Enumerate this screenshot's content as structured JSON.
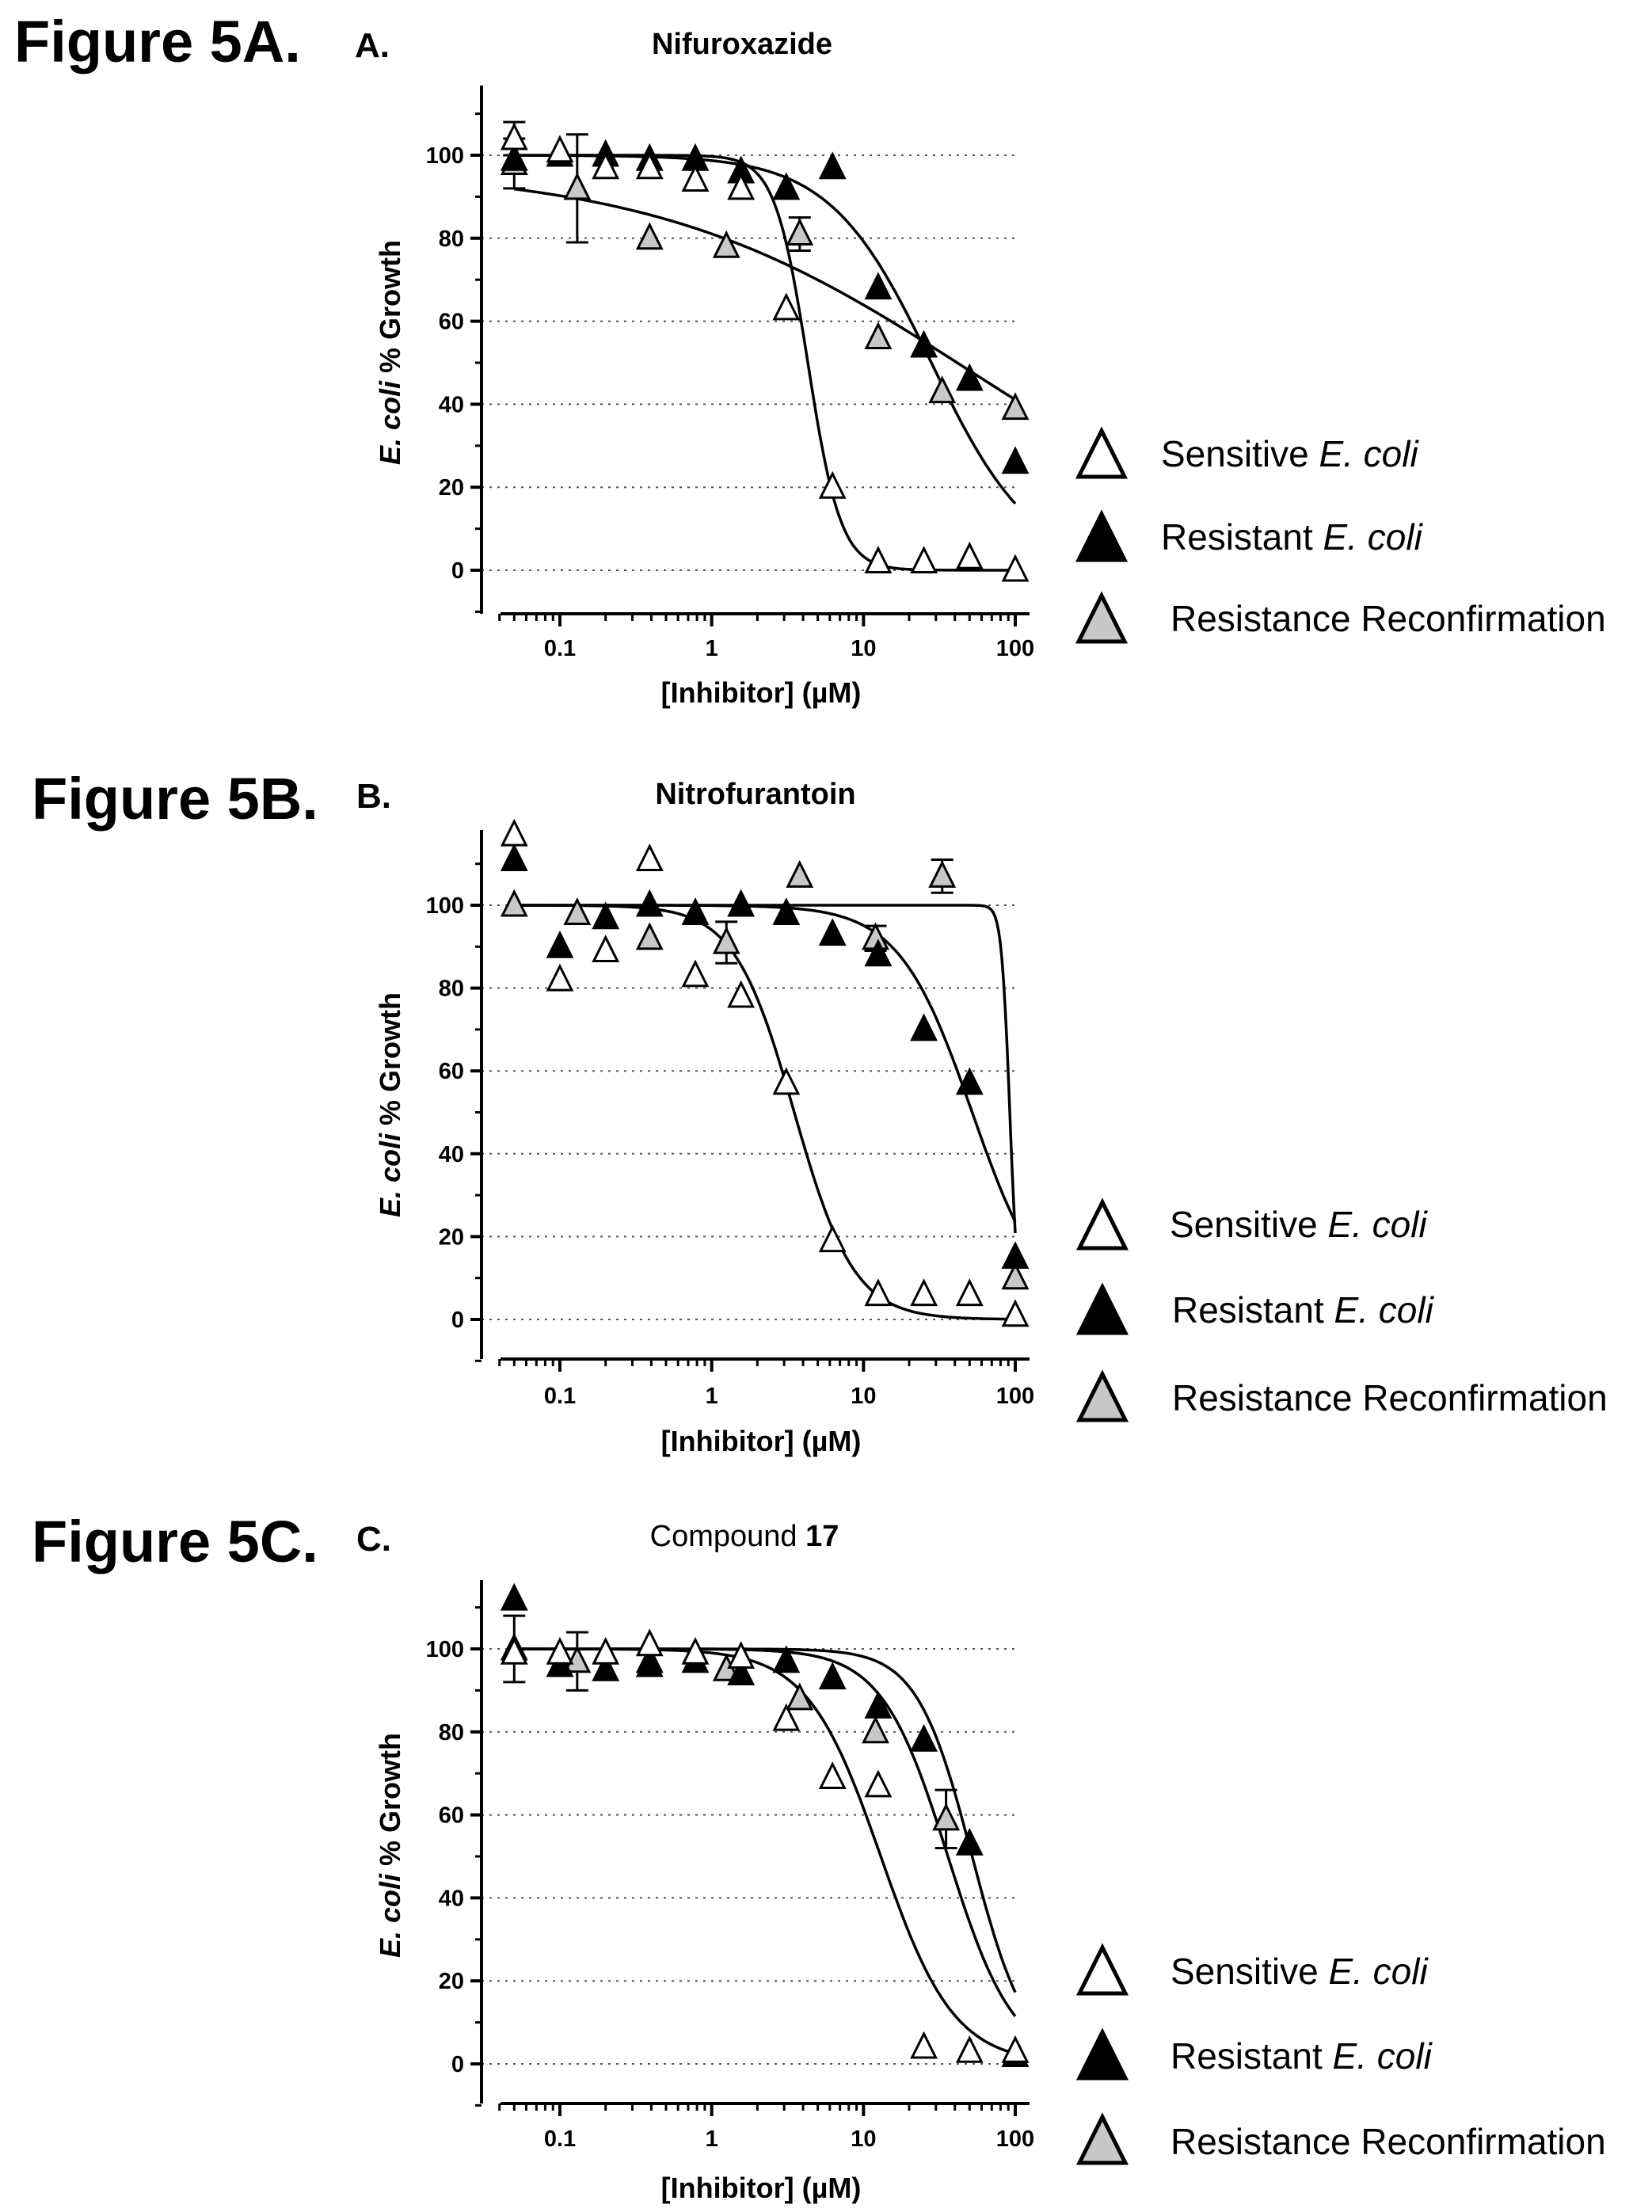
{
  "figures": [
    {
      "figure_label": "Figure 5A.",
      "panel_label": "A.",
      "title": "Nifuroxazide",
      "title_bold": ""
    },
    {
      "figure_label": "Figure 5B.",
      "panel_label": "B.",
      "title": "Nitrofurantoin",
      "title_bold": ""
    },
    {
      "figure_label": "Figure 5C.",
      "panel_label": "C.",
      "title": "Compound ",
      "title_bold": "17"
    }
  ],
  "legend": {
    "sensitive": {
      "prefix": "Sensitive ",
      "italic": "E. coli"
    },
    "resistant": {
      "prefix": "Resistant ",
      "italic": "E. coli"
    },
    "reconfirm": {
      "prefix": "Resistance Reconfirmation",
      "italic": ""
    }
  },
  "colors": {
    "sensitive": "#ffffff",
    "resistant": "#000000",
    "reconfirm": "#c8c8c8",
    "grid": "#555555"
  },
  "chart_data": [
    {
      "type": "scatter",
      "title": "Nifuroxazide",
      "xlabel": "[Inhibitor] (µM)",
      "ylabel_italic": "E. coli",
      "ylabel_rest": " % Growth",
      "x_scale": "log",
      "xlim": [
        0.04,
        120
      ],
      "ylim": [
        -10,
        118
      ],
      "x_ticks": [
        0.1,
        1,
        10,
        100
      ],
      "x_tick_labels": [
        "0.1",
        "1",
        "10",
        "100"
      ],
      "y_ticks": [
        0,
        20,
        40,
        60,
        80,
        100
      ],
      "y_tick_labels": [
        "0",
        "20",
        "40",
        "60",
        "80",
        "100"
      ],
      "grid": "horizontal dotted",
      "series": [
        {
          "key": "sensitive",
          "fit": {
            "top": 100,
            "bottom": 0,
            "ic50": 4.3,
            "hill": 4.0
          },
          "x": [
            0.05,
            0.1,
            0.2,
            0.39,
            0.78,
            1.56,
            3.1,
            6.25,
            12.5,
            25,
            50,
            100
          ],
          "y": [
            104,
            101,
            97,
            97,
            94,
            92,
            63,
            20,
            2,
            2,
            3,
            0
          ],
          "err": [
            4,
            0,
            0,
            0,
            0,
            0,
            0,
            0,
            0,
            0,
            0,
            0
          ]
        },
        {
          "key": "resistant",
          "fit": {
            "top": 100,
            "bottom": 0,
            "ic50": 28,
            "hill": 1.3
          },
          "x": [
            0.05,
            0.1,
            0.2,
            0.39,
            0.78,
            1.56,
            3.1,
            6.25,
            12.5,
            25,
            50,
            100
          ],
          "y": [
            99,
            100,
            100,
            99,
            99,
            96,
            92,
            97,
            68,
            54,
            46,
            26
          ],
          "err": [
            0,
            0,
            0,
            0,
            0,
            0,
            0,
            0,
            0,
            0,
            0,
            0
          ]
        },
        {
          "key": "reconfirm",
          "fit": {
            "top": 97,
            "bottom": 0,
            "ic50": 48,
            "hill": 0.42
          },
          "x": [
            0.05,
            0.13,
            0.39,
            1.25,
            3.8,
            12.5,
            33,
            100
          ],
          "y": [
            98,
            92,
            80,
            78,
            81,
            56,
            43,
            39
          ],
          "err": [
            6,
            13,
            0,
            0,
            4,
            0,
            0,
            0
          ]
        }
      ]
    },
    {
      "type": "scatter",
      "title": "Nitrofurantoin",
      "xlabel": "[Inhibitor] (µM)",
      "ylabel_italic": "E. coli",
      "ylabel_rest": " % Growth",
      "x_scale": "log",
      "xlim": [
        0.04,
        120
      ],
      "ylim": [
        -10,
        118
      ],
      "x_ticks": [
        0.1,
        1,
        10,
        100
      ],
      "x_tick_labels": [
        "0.1",
        "1",
        "10",
        "100"
      ],
      "y_ticks": [
        0,
        20,
        40,
        60,
        80,
        100
      ],
      "y_tick_labels": [
        "0",
        "20",
        "40",
        "60",
        "80",
        "100"
      ],
      "grid": "horizontal dotted",
      "series": [
        {
          "key": "sensitive",
          "fit": {
            "top": 100,
            "bottom": 0,
            "ic50": 3.5,
            "hill": 2.2
          },
          "x": [
            0.05,
            0.1,
            0.2,
            0.39,
            0.78,
            1.56,
            3.1,
            6.25,
            12.5,
            25,
            50,
            100
          ],
          "y": [
            117,
            82,
            89,
            111,
            83,
            78,
            57,
            19,
            6,
            6,
            6,
            1
          ],
          "err": [
            0,
            0,
            0,
            0,
            0,
            0,
            0,
            0,
            0,
            0,
            0,
            0
          ]
        },
        {
          "key": "resistant",
          "fit": {
            "top": 100,
            "bottom": 0,
            "ic50": 52,
            "hill": 1.8
          },
          "x": [
            0.05,
            0.1,
            0.2,
            0.39,
            0.78,
            1.56,
            3.1,
            6.25,
            12.5,
            25,
            50,
            100
          ],
          "y": [
            111,
            90,
            97,
            100,
            98,
            100,
            98,
            93,
            88,
            70,
            57,
            15
          ],
          "err": [
            0,
            0,
            0,
            0,
            0,
            0,
            0,
            0,
            0,
            0,
            0,
            0
          ]
        },
        {
          "key": "reconfirm",
          "fit": {
            "top": 100,
            "bottom": 0,
            "ic50": 92,
            "hill": 16
          },
          "x": [
            0.05,
            0.13,
            0.39,
            1.25,
            3.8,
            12,
            33,
            100
          ],
          "y": [
            100,
            98,
            92,
            91,
            107,
            92,
            107,
            10
          ],
          "err": [
            0,
            0,
            0,
            5,
            0,
            3,
            4,
            0
          ]
        }
      ]
    },
    {
      "type": "scatter",
      "title": "Compound 17",
      "xlabel": "[Inhibitor] (µM)",
      "ylabel_italic": "E. coli",
      "ylabel_rest": " % Growth",
      "x_scale": "log",
      "xlim": [
        0.04,
        120
      ],
      "ylim": [
        -10,
        118
      ],
      "x_ticks": [
        0.1,
        1,
        10,
        100
      ],
      "x_tick_labels": [
        "0.1",
        "1",
        "10",
        "100"
      ],
      "y_ticks": [
        0,
        20,
        40,
        60,
        80,
        100
      ],
      "y_tick_labels": [
        "0",
        "20",
        "40",
        "60",
        "80",
        "100"
      ],
      "grid": "horizontal dotted",
      "series": [
        {
          "key": "sensitive",
          "fit": {
            "top": 100,
            "bottom": 0,
            "ic50": 13,
            "hill": 1.8
          },
          "x": [
            0.05,
            0.1,
            0.2,
            0.39,
            0.78,
            1.56,
            3.1,
            6.25,
            12.5,
            25,
            50,
            100
          ],
          "y": [
            99,
            99,
            99,
            101,
            99,
            98,
            83,
            69,
            67,
            4,
            3,
            3
          ],
          "err": [
            0,
            0,
            0,
            0,
            0,
            0,
            0,
            0,
            0,
            0,
            0,
            0
          ]
        },
        {
          "key": "resistant",
          "fit": {
            "top": 100,
            "bottom": 0,
            "ic50": 52,
            "hill": 2.4
          },
          "x": [
            0.05,
            0.1,
            0.2,
            0.39,
            0.78,
            1.56,
            3.1,
            6.25,
            12.5,
            25,
            50,
            100
          ],
          "y": [
            112,
            96,
            95,
            96,
            97,
            94,
            97,
            93,
            86,
            78,
            53,
            2
          ],
          "err": [
            0,
            0,
            0,
            0,
            0,
            0,
            0,
            0,
            0,
            0,
            0,
            0
          ]
        },
        {
          "key": "reconfirm",
          "fit": {
            "top": 100,
            "bottom": 0,
            "ic50": 36,
            "hill": 2.0
          },
          "x": [
            0.05,
            0.13,
            0.39,
            1.25,
            3.8,
            12,
            35,
            100
          ],
          "y": [
            100,
            97,
            97,
            95,
            88,
            80,
            59,
            2
          ],
          "err": [
            8,
            7,
            0,
            0,
            0,
            0,
            7,
            0
          ]
        }
      ]
    }
  ]
}
